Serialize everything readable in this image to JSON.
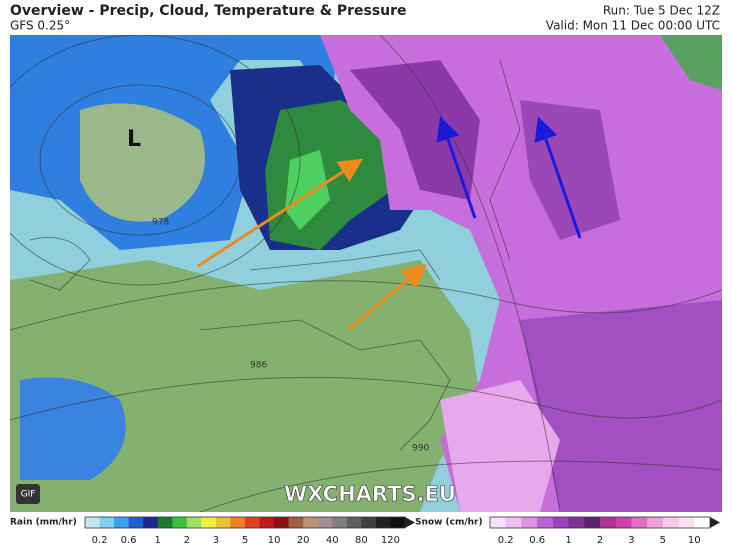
{
  "header": {
    "title": "Overview - Precip, Cloud, Temperature & Pressure",
    "model": "GFS 0.25°",
    "run": "Run: Tue 5 Dec 12Z",
    "valid": "Valid: Mon 11 Dec 00:00 UTC"
  },
  "map": {
    "low_label": "L",
    "isobar_labels": [
      "978",
      "986",
      "990"
    ],
    "watermark": "WXCHARTS.EU",
    "gif_button": "GIF"
  },
  "legend": {
    "rain": {
      "label": "Rain (mm/hr)",
      "ticks": [
        "0.2",
        "0.6",
        "1",
        "2",
        "3",
        "5",
        "10",
        "20",
        "40",
        "80",
        "120"
      ]
    },
    "snow": {
      "label": "Snow (cm/hr)",
      "ticks": [
        "0.2",
        "0.6",
        "1",
        "2",
        "3",
        "5",
        "10"
      ]
    }
  }
}
